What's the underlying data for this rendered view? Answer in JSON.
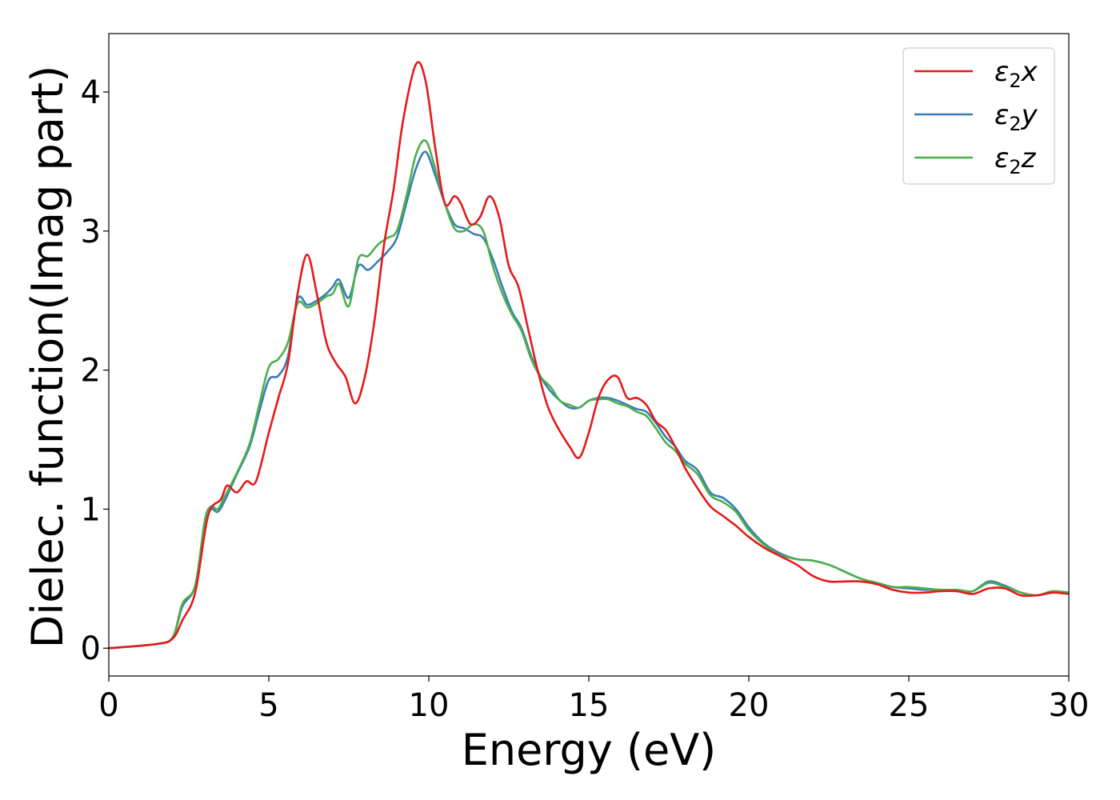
{
  "chart_data": {
    "type": "line",
    "xlabel": "Energy (eV)",
    "ylabel": "Dielec. function(Imag part)",
    "xlim": [
      0,
      30
    ],
    "ylim": [
      -0.2,
      4.42
    ],
    "x_ticks": [
      0,
      5,
      10,
      15,
      20,
      25,
      30
    ],
    "y_ticks": [
      0,
      1,
      2,
      3,
      4
    ],
    "grid": false,
    "legend_position": "top-right",
    "series": [
      {
        "name": "ε2x",
        "legend_base": "ε",
        "legend_sub": "2",
        "legend_suffix": "x",
        "color": "#e41a1c",
        "x": [
          0,
          1.5,
          2,
          2.3,
          2.7,
          3.1,
          3.5,
          3.7,
          4,
          4.3,
          4.6,
          5,
          5.3,
          5.6,
          5.9,
          6.2,
          6.5,
          6.8,
          7.1,
          7.4,
          7.7,
          8,
          8.3,
          8.6,
          8.9,
          9.2,
          9.6,
          9.9,
          10.2,
          10.5,
          10.8,
          11,
          11.3,
          11.6,
          11.9,
          12.2,
          12.5,
          12.8,
          13.1,
          13.4,
          13.7,
          14,
          14.4,
          14.7,
          15,
          15.3,
          15.6,
          15.9,
          16.2,
          16.5,
          16.8,
          17.1,
          17.4,
          17.7,
          18,
          18.4,
          18.8,
          19.2,
          19.6,
          20,
          20.5,
          21,
          21.5,
          22,
          22.5,
          23,
          23.5,
          24,
          24.5,
          25,
          25.5,
          26,
          26.5,
          27,
          27.5,
          28,
          28.5,
          29,
          29.5,
          30
        ],
        "values": [
          0,
          0.03,
          0.07,
          0.2,
          0.4,
          0.95,
          1.07,
          1.17,
          1.12,
          1.2,
          1.2,
          1.55,
          1.8,
          2.05,
          2.55,
          2.83,
          2.55,
          2.2,
          2.05,
          1.95,
          1.76,
          1.95,
          2.35,
          2.9,
          3.3,
          3.8,
          4.2,
          4.08,
          3.6,
          3.2,
          3.25,
          3.2,
          3.05,
          3.1,
          3.25,
          3.1,
          2.75,
          2.6,
          2.3,
          2.0,
          1.75,
          1.6,
          1.45,
          1.37,
          1.55,
          1.8,
          1.93,
          1.95,
          1.8,
          1.8,
          1.75,
          1.63,
          1.57,
          1.45,
          1.3,
          1.15,
          1.02,
          0.95,
          0.88,
          0.8,
          0.72,
          0.66,
          0.6,
          0.52,
          0.48,
          0.48,
          0.48,
          0.46,
          0.42,
          0.4,
          0.4,
          0.41,
          0.41,
          0.39,
          0.43,
          0.43,
          0.38,
          0.38,
          0.4,
          0.39
        ]
      },
      {
        "name": "ε2y",
        "legend_base": "ε",
        "legend_sub": "2",
        "legend_suffix": "y",
        "color": "#377eb8",
        "x": [
          0,
          1.5,
          2,
          2.3,
          2.7,
          3,
          3.2,
          3.4,
          3.6,
          4,
          4.4,
          4.7,
          5,
          5.3,
          5.6,
          5.9,
          6.2,
          6.5,
          6.8,
          7,
          7.2,
          7.5,
          7.8,
          8.1,
          8.4,
          8.7,
          9,
          9.3,
          9.6,
          9.9,
          10.2,
          10.5,
          10.8,
          11.1,
          11.4,
          11.7,
          12,
          12.3,
          12.6,
          12.9,
          13.2,
          13.5,
          13.8,
          14.1,
          14.4,
          14.7,
          15,
          15.3,
          15.6,
          15.9,
          16.2,
          16.5,
          16.8,
          17.1,
          17.4,
          17.7,
          18,
          18.4,
          18.8,
          19.2,
          19.6,
          20,
          20.5,
          21,
          21.5,
          22,
          22.5,
          23,
          23.5,
          24,
          24.5,
          25,
          25.5,
          26,
          26.5,
          27,
          27.5,
          28,
          28.5,
          29,
          29.5,
          30
        ],
        "values": [
          0,
          0.03,
          0.08,
          0.3,
          0.45,
          0.9,
          1.0,
          0.98,
          1.05,
          1.25,
          1.45,
          1.7,
          1.93,
          1.96,
          2.1,
          2.51,
          2.47,
          2.5,
          2.55,
          2.6,
          2.65,
          2.52,
          2.75,
          2.72,
          2.78,
          2.85,
          2.95,
          3.2,
          3.45,
          3.57,
          3.4,
          3.2,
          3.05,
          3.02,
          2.98,
          2.95,
          2.8,
          2.6,
          2.42,
          2.3,
          2.1,
          1.95,
          1.85,
          1.78,
          1.73,
          1.73,
          1.78,
          1.8,
          1.8,
          1.78,
          1.75,
          1.72,
          1.7,
          1.62,
          1.52,
          1.45,
          1.35,
          1.28,
          1.12,
          1.08,
          1.0,
          0.87,
          0.75,
          0.68,
          0.64,
          0.63,
          0.6,
          0.55,
          0.5,
          0.47,
          0.44,
          0.43,
          0.42,
          0.42,
          0.41,
          0.41,
          0.48,
          0.45,
          0.4,
          0.38,
          0.4,
          0.4
        ]
      },
      {
        "name": "ε2z",
        "legend_base": "ε",
        "legend_sub": "2",
        "legend_suffix": "z",
        "color": "#4daf4a",
        "x": [
          0,
          1.5,
          2,
          2.3,
          2.7,
          3,
          3.2,
          3.4,
          3.6,
          4,
          4.4,
          4.7,
          5,
          5.3,
          5.6,
          5.9,
          6.2,
          6.5,
          6.8,
          7,
          7.2,
          7.5,
          7.8,
          8.1,
          8.4,
          8.7,
          9,
          9.3,
          9.6,
          9.9,
          10.2,
          10.5,
          10.8,
          11.1,
          11.4,
          11.7,
          12,
          12.3,
          12.6,
          12.9,
          13.2,
          13.5,
          13.8,
          14.1,
          14.4,
          14.7,
          15,
          15.3,
          15.6,
          15.9,
          16.2,
          16.5,
          16.8,
          17.1,
          17.4,
          17.7,
          18,
          18.4,
          18.8,
          19.2,
          19.6,
          20,
          20.5,
          21,
          21.5,
          22,
          22.5,
          23,
          23.5,
          24,
          24.5,
          25,
          25.5,
          26,
          26.5,
          27,
          27.5,
          28,
          28.5,
          29,
          29.5,
          30
        ],
        "values": [
          0,
          0.03,
          0.08,
          0.32,
          0.45,
          0.92,
          1.02,
          1.0,
          1.08,
          1.26,
          1.47,
          1.75,
          2.02,
          2.08,
          2.2,
          2.48,
          2.45,
          2.48,
          2.53,
          2.55,
          2.62,
          2.46,
          2.8,
          2.82,
          2.9,
          2.95,
          3.0,
          3.25,
          3.55,
          3.65,
          3.45,
          3.2,
          3.02,
          3.0,
          3.05,
          3.0,
          2.75,
          2.55,
          2.4,
          2.28,
          2.08,
          1.95,
          1.88,
          1.78,
          1.75,
          1.73,
          1.78,
          1.79,
          1.79,
          1.76,
          1.74,
          1.7,
          1.67,
          1.58,
          1.48,
          1.42,
          1.33,
          1.25,
          1.1,
          1.05,
          0.98,
          0.85,
          0.74,
          0.67,
          0.64,
          0.63,
          0.6,
          0.55,
          0.5,
          0.47,
          0.44,
          0.44,
          0.43,
          0.42,
          0.42,
          0.41,
          0.47,
          0.44,
          0.4,
          0.38,
          0.41,
          0.4
        ]
      }
    ]
  }
}
